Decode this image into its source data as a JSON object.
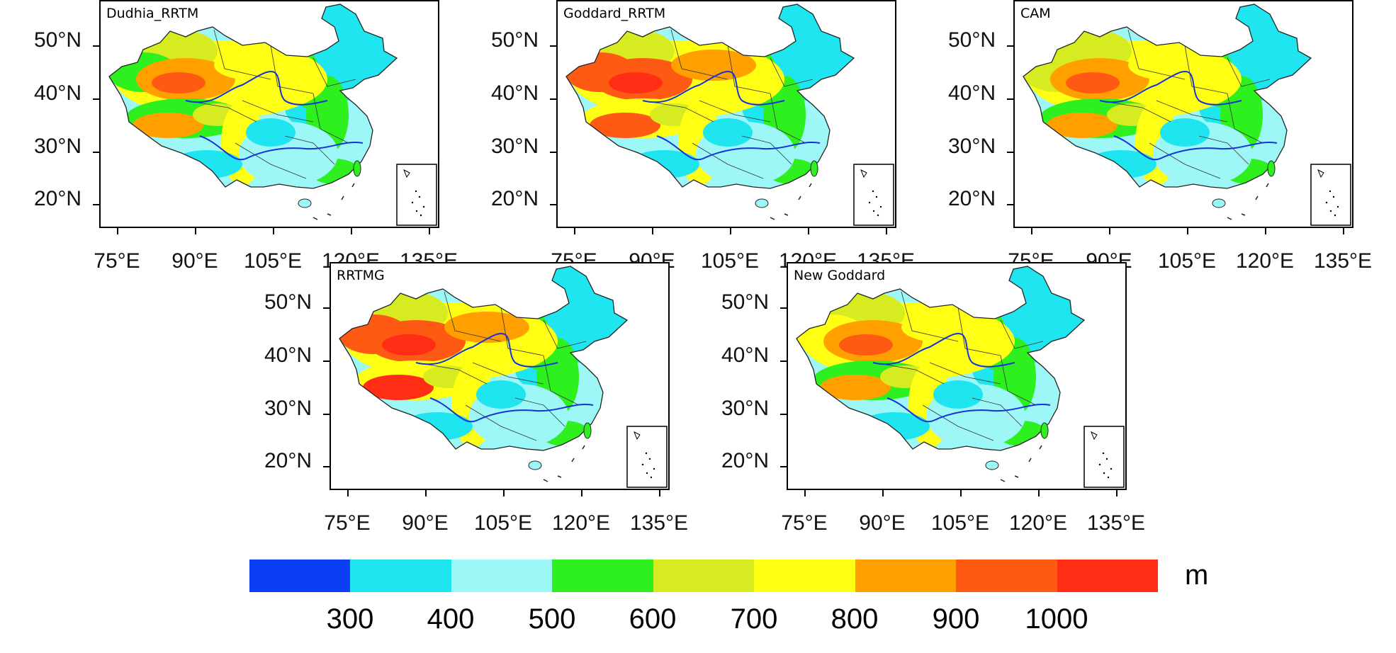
{
  "panels": [
    {
      "title": "Dudhia_RRTM"
    },
    {
      "title": "Goddard_RRTM"
    },
    {
      "title": "CAM"
    },
    {
      "title": "RRTMG"
    },
    {
      "title": "New Goddard"
    }
  ],
  "lat_labels": [
    "50°N",
    "40°N",
    "30°N",
    "20°N"
  ],
  "lon_labels": [
    "75°E",
    "90°E",
    "105°E",
    "120°E",
    "135°E"
  ],
  "colorbar": {
    "unit": "m",
    "tick_labels": [
      "300",
      "400",
      "500",
      "600",
      "700",
      "800",
      "900",
      "1000"
    ],
    "colors": [
      "#0a3ff5",
      "#1ee5f0",
      "#9ef7f7",
      "#2ef01e",
      "#d6ec20",
      "#ffff14",
      "#ffa000",
      "#ff5a14",
      "#ff2e14"
    ]
  }
}
